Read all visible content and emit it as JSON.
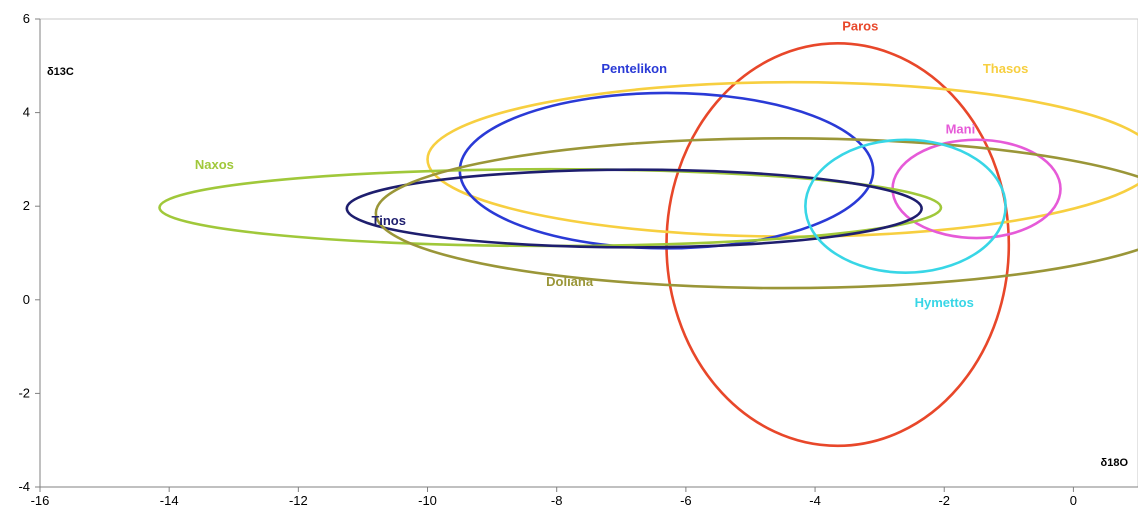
{
  "chart_data": {
    "type": "scatter",
    "title": "",
    "xlabel": "δ18O",
    "ylabel": "δ13C",
    "xlim": [
      -16,
      1
    ],
    "ylim": [
      -4,
      6
    ],
    "x_ticks": [
      -16,
      -14,
      -12,
      -10,
      -8,
      -6,
      -4,
      -2,
      0
    ],
    "y_ticks": [
      -4,
      -2,
      0,
      2,
      4,
      6
    ],
    "grid": false,
    "shape": "ellipse",
    "series": [
      {
        "name": "Paros",
        "color": "#e8472a",
        "cx": -3.65,
        "cy": 1.18,
        "rx": 2.65,
        "ry": 4.3
      },
      {
        "name": "Thasos",
        "color": "#f7cf40",
        "cx": -4.35,
        "cy": 3.0,
        "rx": 5.65,
        "ry": 1.65
      },
      {
        "name": "Pentelikon",
        "color": "#2a3ad6",
        "cx": -6.3,
        "cy": 2.76,
        "rx": 3.2,
        "ry": 1.66
      },
      {
        "name": "Mani",
        "color": "#e65ad8",
        "cx": -1.5,
        "cy": 2.37,
        "rx": 1.3,
        "ry": 1.05
      },
      {
        "name": "Naxos",
        "color": "#a0c83a",
        "cx": -8.1,
        "cy": 1.97,
        "rx": 6.05,
        "ry": 0.82
      },
      {
        "name": "Tinos",
        "color": "#1e1e6e",
        "cx": -6.8,
        "cy": 1.95,
        "rx": 4.45,
        "ry": 0.83
      },
      {
        "name": "Doliana",
        "color": "#9a9638",
        "cx": -4.5,
        "cy": 1.85,
        "rx": 6.3,
        "ry": 1.6
      },
      {
        "name": "Hymettos",
        "color": "#38d6e6",
        "cx": -2.6,
        "cy": 2.0,
        "rx": 1.55,
        "ry": 1.42
      }
    ],
    "labels": [
      {
        "text": "Paros",
        "x": -3.3,
        "y": 5.75
      },
      {
        "text": "Thasos",
        "x": -1.05,
        "y": 4.85
      },
      {
        "text": "Pentelikon",
        "x": -6.8,
        "y": 4.85
      },
      {
        "text": "Mani",
        "x": -1.75,
        "y": 3.55
      },
      {
        "text": "Naxos",
        "x": -13.3,
        "y": 2.8
      },
      {
        "text": "Tinos",
        "x": -10.6,
        "y": 1.6
      },
      {
        "text": "Doliana",
        "x": -7.8,
        "y": 0.3
      },
      {
        "text": "Hymettos",
        "x": -2.0,
        "y": -0.15
      }
    ]
  }
}
